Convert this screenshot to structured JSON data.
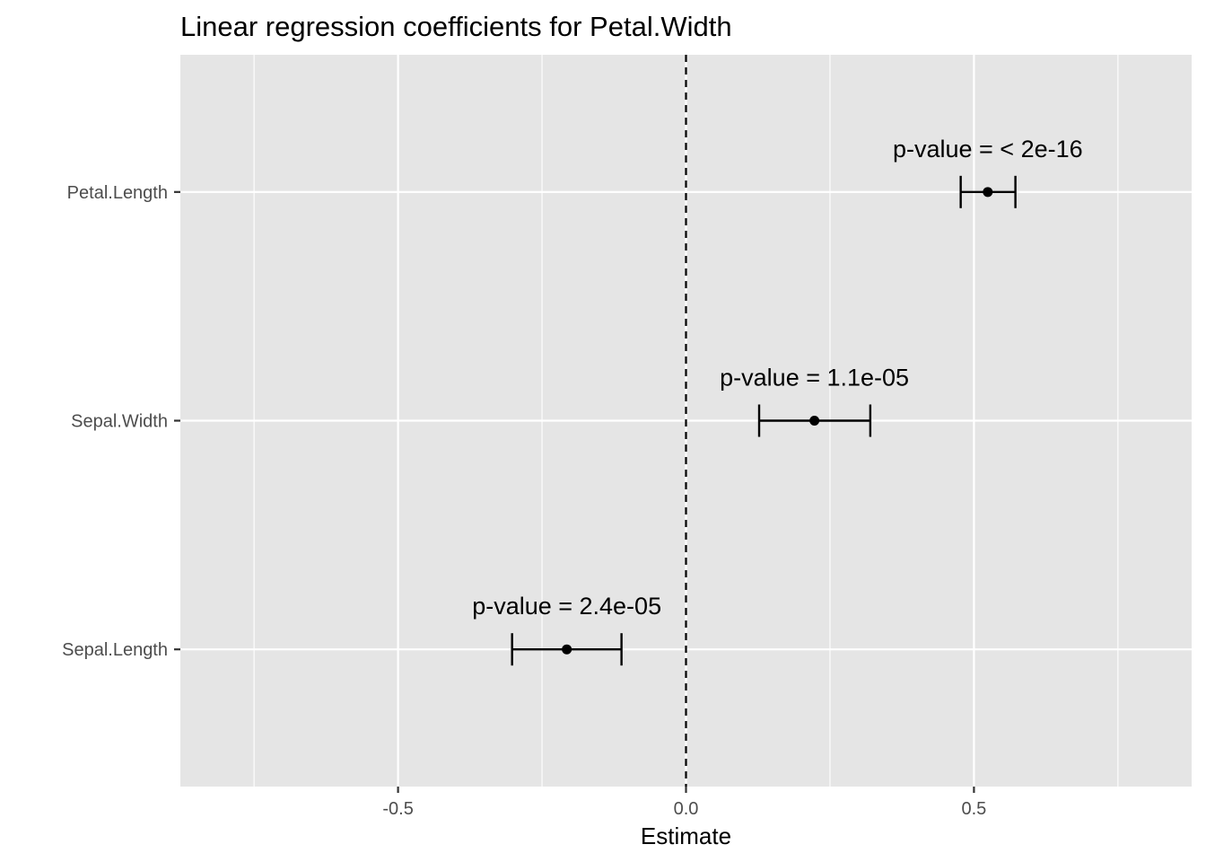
{
  "chart_data": {
    "type": "scatter",
    "subtype": "coefficient-plot-with-error-bars",
    "title": "Linear regression coefficients for Petal.Width",
    "xlabel": "Estimate",
    "ylabel": "",
    "xlim": [
      -0.878,
      0.878
    ],
    "x_ticks": [
      -0.5,
      0.0,
      0.5
    ],
    "x_tick_labels": [
      "-0.5",
      "0.0",
      "0.5"
    ],
    "x_minor_gridlines": [
      -0.75,
      -0.25,
      0.25,
      0.75
    ],
    "categories": [
      "Petal.Length",
      "Sepal.Width",
      "Sepal.Length"
    ],
    "estimates": [
      0.524,
      0.223,
      -0.207
    ],
    "ci_low": [
      0.477,
      0.127,
      -0.302
    ],
    "ci_high": [
      0.572,
      0.32,
      -0.112
    ],
    "annotations": [
      "p-value = < 2e-16",
      "p-value = 1.1e-05",
      "p-value = 2.4e-05"
    ],
    "reference_line": {
      "x": 0,
      "style": "dashed"
    },
    "grid": true,
    "legend": "none",
    "colors": {
      "panel_background": "#e5e5e5",
      "grid": "#ffffff",
      "marks": "#000000",
      "tick_text": "#4d4d4d",
      "tick_marks": "#333333"
    }
  }
}
